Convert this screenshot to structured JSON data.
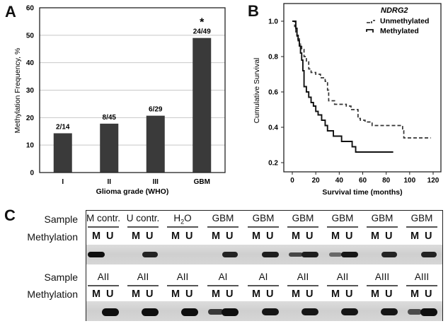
{
  "figure": {
    "panels": [
      {
        "letter": "A"
      },
      {
        "letter": "B"
      },
      {
        "letter": "C"
      }
    ]
  },
  "chart_data": [
    {
      "panel": "A",
      "type": "bar",
      "title": "",
      "categories": [
        "I",
        "II",
        "III",
        "GBM"
      ],
      "values": [
        14.3,
        17.8,
        20.7,
        49.0
      ],
      "data_labels": [
        "2/14",
        "8/45",
        "6/29",
        "24/49"
      ],
      "annotations": [
        {
          "category": "GBM",
          "text": "*"
        }
      ],
      "xlabel": "Glioma grade (WHO)",
      "ylabel": "Methylation Frequency, %",
      "ylim": [
        0,
        60
      ],
      "yticks": [
        0,
        10,
        20,
        30,
        40,
        50,
        60
      ],
      "grid": true,
      "bar_color": "#3a3a3a"
    },
    {
      "panel": "B",
      "type": "line",
      "title": "",
      "xlabel": "Survival time (months)",
      "ylabel": "Cumulative Survival",
      "xlim": [
        -5,
        125
      ],
      "ylim": [
        0.15,
        1.08
      ],
      "xticks": [
        0,
        20,
        40,
        60,
        80,
        100,
        120
      ],
      "yticks": [
        0.2,
        0.4,
        0.6,
        0.8,
        1.0
      ],
      "ytick_labels": [
        "0.2",
        "0.4",
        "0.6",
        "0.8",
        "1.0"
      ],
      "legend": {
        "title": "NDRG2",
        "position": "top-right",
        "entries": [
          "Unmethylated",
          "Methylated"
        ]
      },
      "series": [
        {
          "name": "Unmethylated",
          "style": "dashed",
          "x": [
            1,
            2,
            3,
            4,
            6,
            8,
            10,
            12,
            14,
            16,
            20,
            24,
            28,
            30,
            31,
            36,
            46,
            50,
            56,
            58,
            62,
            68,
            94,
            95,
            118
          ],
          "y": [
            1.0,
            0.97,
            0.93,
            0.9,
            0.87,
            0.84,
            0.8,
            0.77,
            0.73,
            0.71,
            0.7,
            0.68,
            0.66,
            0.61,
            0.55,
            0.53,
            0.52,
            0.5,
            0.45,
            0.44,
            0.43,
            0.41,
            0.38,
            0.34,
            0.34
          ]
        },
        {
          "name": "Methylated",
          "style": "solid",
          "x": [
            1,
            3,
            4,
            5,
            6,
            7,
            8,
            9,
            10,
            12,
            14,
            16,
            18,
            20,
            22,
            25,
            28,
            30,
            35,
            42,
            51,
            54,
            86
          ],
          "y": [
            1.0,
            0.96,
            0.92,
            0.89,
            0.86,
            0.82,
            0.78,
            0.72,
            0.63,
            0.6,
            0.57,
            0.54,
            0.52,
            0.49,
            0.47,
            0.44,
            0.41,
            0.38,
            0.35,
            0.32,
            0.29,
            0.26,
            0.26
          ]
        }
      ]
    }
  ],
  "gel": {
    "row_labels": {
      "sample": "Sample",
      "methylation": "Methylation"
    },
    "lane_labels": {
      "m": "M",
      "u": "U"
    },
    "top_row": [
      {
        "sample": "M contr.",
        "m": 1.0,
        "u": 0.0
      },
      {
        "sample": "U contr.",
        "m": 0.0,
        "u": 0.85
      },
      {
        "sample": "H2O",
        "m": 0.0,
        "u": 0.0
      },
      {
        "sample": "GBM",
        "m": 0.0,
        "u": 0.85
      },
      {
        "sample": "GBM",
        "m": 0.0,
        "u": 0.9
      },
      {
        "sample": "GBM",
        "m": 0.6,
        "u": 0.9
      },
      {
        "sample": "GBM",
        "m": 0.35,
        "u": 0.95
      },
      {
        "sample": "GBM",
        "m": 0.0,
        "u": 0.85
      },
      {
        "sample": "GBM",
        "m": 0.0,
        "u": 0.85
      }
    ],
    "bottom_row": [
      {
        "sample": "AII",
        "m": 0.0,
        "u": 1.0
      },
      {
        "sample": "AII",
        "m": 0.0,
        "u": 1.0
      },
      {
        "sample": "AII",
        "m": 0.0,
        "u": 1.0
      },
      {
        "sample": "AI",
        "m": 0.7,
        "u": 1.0
      },
      {
        "sample": "AI",
        "m": 0.0,
        "u": 0.95
      },
      {
        "sample": "AII",
        "m": 0.0,
        "u": 0.95
      },
      {
        "sample": "AII",
        "m": 0.0,
        "u": 0.95
      },
      {
        "sample": "AIII",
        "m": 0.0,
        "u": 0.95
      },
      {
        "sample": "AIII",
        "m": 0.55,
        "u": 1.0
      }
    ]
  }
}
